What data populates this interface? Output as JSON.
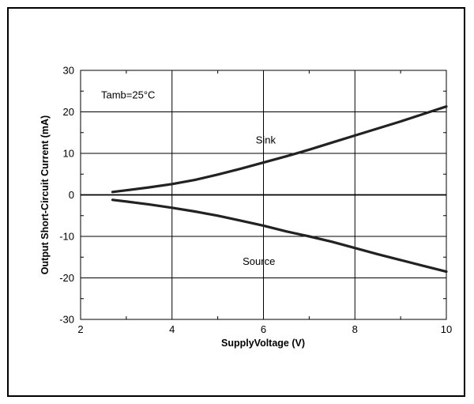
{
  "chart_data": {
    "type": "line",
    "xlabel": "SupplyVoltage  (V)",
    "ylabel": "Output Short-Circuit Current (mA)",
    "xlim": [
      2,
      10
    ],
    "ylim": [
      -30,
      30
    ],
    "x_ticks": [
      "2",
      "4",
      "6",
      "8",
      "10"
    ],
    "y_ticks": [
      "30",
      "20",
      "10",
      "0",
      "-10",
      "-20",
      "-30"
    ],
    "grid": true,
    "annotations": {
      "condition": "Tamb=25°C",
      "sink": "Sink",
      "source": "Source"
    },
    "series": [
      {
        "name": "Sink",
        "x": [
          2.7,
          3,
          3.5,
          4,
          4.5,
          5,
          5.5,
          6,
          6.5,
          7,
          7.5,
          8,
          8.5,
          9,
          9.5,
          10
        ],
        "y": [
          0.7,
          1.1,
          1.8,
          2.6,
          3.6,
          4.9,
          6.3,
          7.8,
          9.3,
          10.9,
          12.6,
          14.3,
          16.0,
          17.7,
          19.5,
          21.3
        ],
        "color": "#222222"
      },
      {
        "name": "Source",
        "x": [
          2.7,
          3,
          3.5,
          4,
          4.5,
          5,
          5.5,
          6,
          6.5,
          7,
          7.5,
          8,
          8.5,
          9,
          9.5,
          10
        ],
        "y": [
          -1.2,
          -1.6,
          -2.3,
          -3.1,
          -4.0,
          -5.0,
          -6.2,
          -7.4,
          -8.8,
          -10.0,
          -11.3,
          -12.8,
          -14.3,
          -15.7,
          -17.1,
          -18.5
        ],
        "color": "#222222"
      }
    ]
  }
}
